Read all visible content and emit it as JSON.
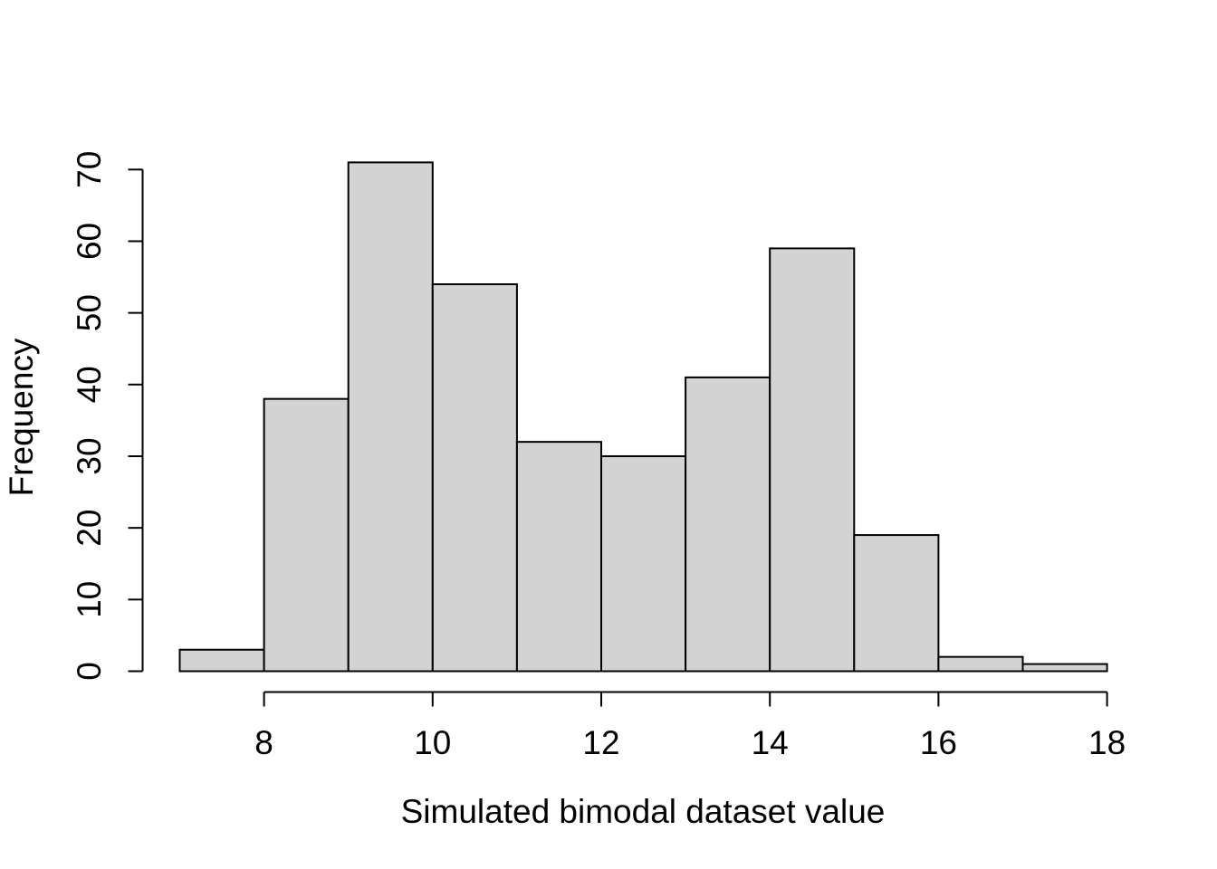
{
  "chart_data": {
    "type": "bar",
    "subtype": "histogram",
    "title": "",
    "xlabel": "Simulated bimodal dataset value",
    "ylabel": "Frequency",
    "bin_edges": [
      7,
      8,
      9,
      10,
      11,
      12,
      13,
      14,
      15,
      16,
      17,
      18
    ],
    "values": [
      3,
      38,
      71,
      54,
      32,
      30,
      41,
      59,
      19,
      2,
      1
    ],
    "xticks": [
      8,
      10,
      12,
      14,
      16,
      18
    ],
    "yticks": [
      0,
      10,
      20,
      30,
      40,
      50,
      60,
      70
    ],
    "xlim": [
      7,
      18
    ],
    "ylim": [
      0,
      70
    ],
    "grid": false,
    "legend": "none",
    "bar_color": "#d3d3d3",
    "edge_color": "#000000"
  }
}
